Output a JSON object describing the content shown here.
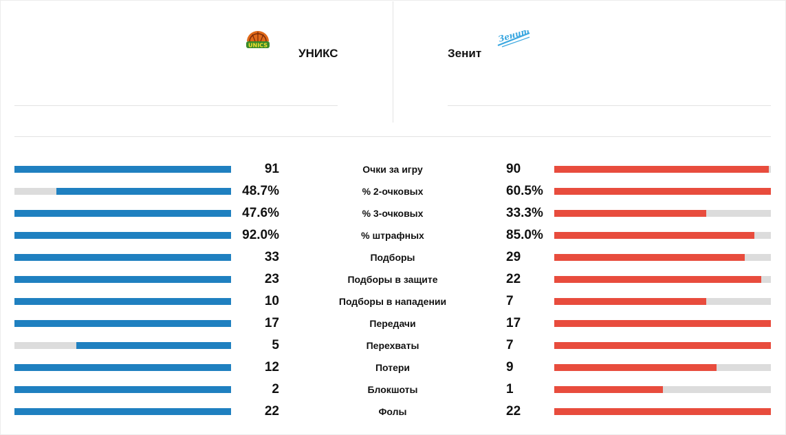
{
  "colors": {
    "home_bar": "#1f80c0",
    "away_bar": "#e84c3d",
    "bar_track": "#dcdcdc"
  },
  "home": {
    "name": "УНИКС",
    "logo": "unics-logo",
    "logo_text": "UNICS"
  },
  "away": {
    "name": "Зенит",
    "logo": "zenit-logo",
    "logo_text": "Зенит"
  },
  "stats": [
    {
      "label": "Очки за игру",
      "home": "91",
      "away": "90",
      "home_share": 1.0,
      "away_share": 0.989
    },
    {
      "label": "% 2-очковых",
      "home": "48.7%",
      "away": "60.5%",
      "home_share": 0.805,
      "away_share": 1.0
    },
    {
      "label": "% 3-очковых",
      "home": "47.6%",
      "away": "33.3%",
      "home_share": 1.0,
      "away_share": 0.7
    },
    {
      "label": "% штрафных",
      "home": "92.0%",
      "away": "85.0%",
      "home_share": 1.0,
      "away_share": 0.924
    },
    {
      "label": "Подборы",
      "home": "33",
      "away": "29",
      "home_share": 1.0,
      "away_share": 0.879
    },
    {
      "label": "Подборы в защите",
      "home": "23",
      "away": "22",
      "home_share": 1.0,
      "away_share": 0.957
    },
    {
      "label": "Подборы в нападении",
      "home": "10",
      "away": "7",
      "home_share": 1.0,
      "away_share": 0.7
    },
    {
      "label": "Передачи",
      "home": "17",
      "away": "17",
      "home_share": 1.0,
      "away_share": 1.0
    },
    {
      "label": "Перехваты",
      "home": "5",
      "away": "7",
      "home_share": 0.714,
      "away_share": 1.0
    },
    {
      "label": "Потери",
      "home": "12",
      "away": "9",
      "home_share": 1.0,
      "away_share": 0.75
    },
    {
      "label": "Блокшоты",
      "home": "2",
      "away": "1",
      "home_share": 1.0,
      "away_share": 0.5
    },
    {
      "label": "Фолы",
      "home": "22",
      "away": "22",
      "home_share": 1.0,
      "away_share": 1.0
    }
  ]
}
